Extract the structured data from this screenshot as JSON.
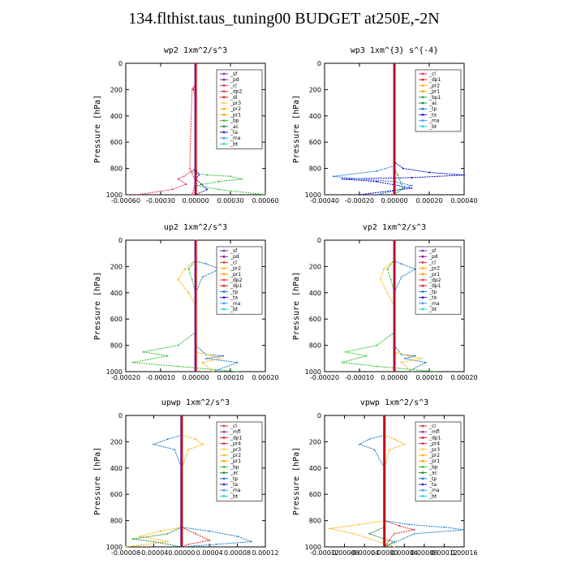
{
  "page": {
    "title": "134.flthist.taus_tuning00  BUDGET at250E,-2N"
  },
  "colors": {
    "sf": "#7b2fbf",
    "pd": "#8b1a8b",
    "cl": "#e0305a",
    "dp2": "#ff3030",
    "dl": "#cc2020",
    "pr3": "#ffd040",
    "pr2": "#ffb000",
    "pr1": "#ffa000",
    "bp": "#30c030",
    "ac": "#1a8a3a",
    "tp": "#1a78c8",
    "ta": "#2020d0",
    "ma": "#40a0ff",
    "bt": "#20d0e0",
    "mfl": "#8b3aa0",
    "dp1": "#e02020",
    "pr4": "#d03040",
    "bp1": "#2fa040",
    "dp1b": "#0000cc",
    "main": "#cc0000"
  },
  "chart_data": [
    {
      "type": "line",
      "title": "wp2   1xm^2/s^3",
      "ylabel": "Pressure  [hPa]",
      "xlim": [
        -0.0006,
        0.0006
      ],
      "ylim": [
        1000,
        0
      ],
      "xticks": [
        "-0.00060",
        "-0.00030",
        "0.00000",
        "0.00030",
        "0.00060"
      ],
      "yticks": [
        "0",
        "200",
        "400",
        "600",
        "800",
        "1000"
      ],
      "legend": [
        "_sf",
        "_pd",
        "_cl",
        "_dp2",
        "_dl",
        "_pr3",
        "_pr2",
        "_pr1",
        "_bp",
        "_ac",
        "_ta",
        "_ma",
        "_bt"
      ],
      "series": [
        {
          "name": "_bp",
          "color": "bp",
          "x": [
            0,
            0,
            0,
            -3e-05,
            0.0001,
            0.0003,
            0.0004,
            0.0002,
            0,
            0.0002,
            0.0006
          ],
          "y": [
            0,
            700,
            800,
            830,
            850,
            860,
            880,
            900,
            930,
            960,
            1000
          ]
        },
        {
          "name": "_cl",
          "color": "cl",
          "x": [
            0,
            0,
            -2e-05,
            0,
            0,
            -0.0001,
            -0.00015,
            -8e-05,
            -0.0002,
            -0.0005
          ],
          "y": [
            0,
            150,
            200,
            250,
            800,
            860,
            880,
            920,
            960,
            1000
          ]
        },
        {
          "name": "_ta",
          "color": "ta",
          "x": [
            0,
            0,
            3e-05,
            0,
            5e-05,
            0.0001,
            0
          ],
          "y": [
            0,
            800,
            850,
            880,
            920,
            960,
            1000
          ]
        },
        {
          "name": "_dp2",
          "color": "dp2",
          "x": [
            0,
            0,
            -3e-05,
            -5e-05,
            0,
            -3e-05
          ],
          "y": [
            0,
            150,
            200,
            800,
            900,
            1000
          ]
        }
      ]
    },
    {
      "type": "line",
      "title": "wp3   1xm^{3} s^{-4}",
      "ylabel": "Pressure  [hPa]",
      "xlim": [
        -0.0004,
        0.0004
      ],
      "ylim": [
        1000,
        0
      ],
      "xticks": [
        "-0.00040",
        "-0.00020",
        "0.00000",
        "0.00020",
        "0.00040"
      ],
      "yticks": [
        "0",
        "200",
        "400",
        "600",
        "800",
        "1000"
      ],
      "legend": [
        "_cl",
        "_dp1",
        "_pr2",
        "_pr1",
        "_bp1",
        "_ac",
        "_tp",
        "_ta",
        "_ma",
        "_bt"
      ],
      "series": [
        {
          "name": "_dp1",
          "color": "dp1b",
          "x": [
            0,
            0,
            5e-05,
            0.0002,
            0.0004,
            0.0001,
            -0.0003,
            -0.0001,
            0.0001,
            -0.0002
          ],
          "y": [
            0,
            750,
            800,
            830,
            850,
            870,
            880,
            900,
            950,
            1000
          ]
        },
        {
          "name": "_ta",
          "color": "tp",
          "x": [
            0,
            0,
            -0.0001,
            -0.00035,
            -0.0002,
            0,
            0.0001,
            3e-05,
            -0.0001
          ],
          "y": [
            0,
            780,
            820,
            860,
            880,
            900,
            930,
            960,
            1000
          ]
        },
        {
          "name": "_ac",
          "color": "ac",
          "x": [
            0,
            0,
            2e-05,
            5e-05,
            0
          ],
          "y": [
            0,
            800,
            850,
            950,
            1000
          ]
        }
      ]
    },
    {
      "type": "line",
      "title": "up2   1xm^2/s^3",
      "ylabel": "Pressure  [hPa]",
      "xlim": [
        -0.0002,
        0.0002
      ],
      "ylim": [
        1000,
        0
      ],
      "xticks": [
        "-0.00020",
        "-0.00010",
        "0.00000",
        "0.00010",
        "0.00020"
      ],
      "yticks": [
        "0",
        "200",
        "400",
        "600",
        "800",
        "1000"
      ],
      "legend": [
        "_sf",
        "_pd",
        "_cl",
        "_pr2",
        "_pr1",
        "_dp2",
        "_dp1",
        "_tp",
        "_ta",
        "_ma",
        "_bt"
      ],
      "series": [
        {
          "name": "_dp1",
          "color": "bp",
          "x": [
            0,
            0,
            -2e-05,
            -1e-05,
            0,
            0,
            -5e-05,
            -0.00015,
            -8e-05,
            -0.00018,
            -5e-05,
            0.00012
          ],
          "y": [
            0,
            150,
            220,
            300,
            400,
            700,
            800,
            850,
            880,
            930,
            960,
            1000
          ]
        },
        {
          "name": "_tp",
          "color": "tp",
          "x": [
            0,
            0,
            3e-05,
            7e-05,
            2e-05,
            0,
            0,
            3e-05,
            8e-05,
            3e-05,
            0.00012,
            5e-05
          ],
          "y": [
            0,
            160,
            180,
            220,
            280,
            400,
            800,
            870,
            880,
            900,
            930,
            1000
          ]
        },
        {
          "name": "_pr1",
          "color": "pr2",
          "x": [
            0,
            0,
            -3e-05,
            -5e-05,
            -2e-05,
            0,
            0,
            5e-05,
            7e-05,
            2e-05,
            5e-05
          ],
          "y": [
            0,
            150,
            220,
            300,
            400,
            500,
            850,
            880,
            900,
            930,
            1000
          ]
        }
      ]
    },
    {
      "type": "line",
      "title": "vp2   1xm^2/s^3",
      "ylabel": "Pressure  [hPa]",
      "xlim": [
        -0.0002,
        0.0002
      ],
      "ylim": [
        1000,
        0
      ],
      "xticks": [
        "-0.00020",
        "-0.00010",
        "0.00000",
        "0.00010",
        "0.00020"
      ],
      "yticks": [
        "0",
        "200",
        "400",
        "600",
        "800",
        "1000"
      ],
      "legend": [
        "_sf",
        "_pd",
        "_cl",
        "_pr2",
        "_pr1",
        "_dp2",
        "_dp1",
        "_tp",
        "_ta",
        "_ma",
        "_bt"
      ],
      "series": [
        {
          "name": "_dp1",
          "color": "bp",
          "x": [
            0,
            0,
            -2e-05,
            -1e-05,
            0,
            0,
            -5e-05,
            -0.00014,
            -8e-05,
            -0.00015,
            -5e-05,
            0.00012
          ],
          "y": [
            0,
            150,
            220,
            300,
            400,
            700,
            800,
            850,
            880,
            930,
            960,
            1000
          ]
        },
        {
          "name": "_tp",
          "color": "tp",
          "x": [
            0,
            0,
            2e-05,
            6e-05,
            2e-05,
            0,
            0,
            2e-05,
            6e-05,
            3e-05,
            9e-05,
            4e-05
          ],
          "y": [
            0,
            160,
            180,
            220,
            280,
            400,
            800,
            870,
            880,
            900,
            930,
            1000
          ]
        },
        {
          "name": "_pr1",
          "color": "pr2",
          "x": [
            0,
            0,
            -3e-05,
            -4e-05,
            -2e-05,
            0,
            0,
            4e-05,
            8e-05,
            2e-05,
            5e-05
          ],
          "y": [
            0,
            150,
            220,
            300,
            400,
            500,
            850,
            880,
            900,
            930,
            1000
          ]
        }
      ]
    },
    {
      "type": "line",
      "title": "upwp   1xm^2/s^3",
      "ylabel": "Pressure  [hPa]",
      "xlim": [
        -8e-05,
        0.00012
      ],
      "ylim": [
        1000,
        0
      ],
      "xticks": [
        "-0.00008",
        "-0.00004",
        "0.00000",
        "0.00004",
        "0.00008",
        "0.00012"
      ],
      "yticks": [
        "0",
        "200",
        "400",
        "600",
        "800",
        "1000"
      ],
      "legend": [
        "_cl",
        "_mfl",
        "_dp1",
        "_pr4",
        "_pr3",
        "_pr2",
        "_pr1",
        "_bp",
        "_ac",
        "_tp",
        "_ta",
        "_ma",
        "_bt"
      ],
      "series": [
        {
          "name": "_tp",
          "color": "tp",
          "x": [
            0,
            0,
            -2e-05,
            -4e-05,
            -1e-05,
            0,
            0,
            4e-05,
            8e-05,
            0.0001,
            5e-05,
            0
          ],
          "y": [
            0,
            150,
            180,
            220,
            260,
            400,
            850,
            880,
            920,
            960,
            980,
            1000
          ]
        },
        {
          "name": "_pr2",
          "color": "pr2",
          "x": [
            0,
            0,
            2e-05,
            3e-05,
            1e-05,
            0,
            0,
            -3e-05,
            -6e-05,
            -2e-05,
            -8e-05
          ],
          "y": [
            0,
            150,
            180,
            220,
            260,
            400,
            850,
            880,
            920,
            960,
            1000
          ]
        },
        {
          "name": "_ac",
          "color": "ac",
          "x": [
            0,
            0,
            -2e-05,
            -7e-05,
            -4e-05,
            0
          ],
          "y": [
            0,
            850,
            900,
            940,
            960,
            1000
          ]
        },
        {
          "name": "_dp1",
          "color": "dp1",
          "x": [
            0,
            0,
            2e-05,
            4e-05,
            1e-05,
            0
          ],
          "y": [
            0,
            850,
            900,
            950,
            980,
            1000
          ]
        }
      ]
    },
    {
      "type": "line",
      "title": "vpwp   1xm^2/s^3",
      "ylabel": "Pressure  [hPa]",
      "xlim": [
        -0.00012,
        0.00016
      ],
      "ylim": [
        1000,
        0
      ],
      "xticks": [
        "-0.00012",
        "-0.00008",
        "-0.00004",
        "0.00000",
        "0.00004",
        "0.00008",
        "0.00012",
        "0.00016"
      ],
      "yticks": [
        "0",
        "200",
        "400",
        "600",
        "800",
        "1000"
      ],
      "legend": [
        "_cl",
        "_mfl",
        "_dp1",
        "_pr4",
        "_pr3",
        "_pr2",
        "_pr1",
        "_bp",
        "_ac",
        "_tp",
        "_ta",
        "_ma",
        "_bt"
      ],
      "series": [
        {
          "name": "_tp",
          "color": "tp",
          "x": [
            0,
            0,
            -3e-05,
            -5e-05,
            -2e-05,
            0,
            0,
            5e-05,
            0.00012,
            0.00016,
            6e-05,
            0
          ],
          "y": [
            0,
            150,
            180,
            220,
            260,
            400,
            800,
            830,
            850,
            870,
            900,
            1000
          ]
        },
        {
          "name": "_pr2",
          "color": "pr2",
          "x": [
            0,
            0,
            2e-05,
            4e-05,
            1e-05,
            0,
            0,
            -5e-05,
            -0.00011,
            -6e-05,
            2e-05
          ],
          "y": [
            0,
            150,
            180,
            220,
            260,
            400,
            800,
            830,
            860,
            900,
            1000
          ]
        },
        {
          "name": "_dp1",
          "color": "dp1",
          "x": [
            0,
            0,
            3e-05,
            6e-05,
            2e-05,
            0
          ],
          "y": [
            0,
            800,
            840,
            870,
            900,
            1000
          ]
        },
        {
          "name": "_ac",
          "color": "ac",
          "x": [
            0,
            0,
            -3e-05,
            0,
            2e-05,
            0
          ],
          "y": [
            0,
            850,
            900,
            940,
            960,
            1000
          ]
        }
      ]
    }
  ]
}
